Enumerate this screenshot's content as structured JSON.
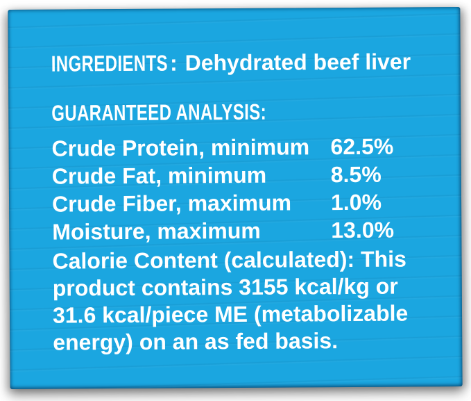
{
  "colors": {
    "panel": "#1ba6e0",
    "background": "#ffffff",
    "text": "#ffffff"
  },
  "label": {
    "ingredients": {
      "heading": "INGREDIENTS",
      "separator": ":",
      "value": "Dehydrated beef liver"
    },
    "guaranteed_analysis": {
      "heading": "GUARANTEED ANALYSIS:",
      "rows": [
        {
          "name": "Crude Protein, minimum",
          "value": "62.5%"
        },
        {
          "name": "Crude Fat, minimum",
          "value": "8.5%"
        },
        {
          "name": "Crude Fiber, maximum",
          "value": "1.0%"
        },
        {
          "name": "Moisture, maximum",
          "value": "13.0%"
        }
      ]
    },
    "calorie_content": "Calorie Content (calculated): This\nproduct contains 3155 kcal/kg or\n31.6 kcal/piece ME (metabolizable\nenergy) on an as fed basis."
  }
}
